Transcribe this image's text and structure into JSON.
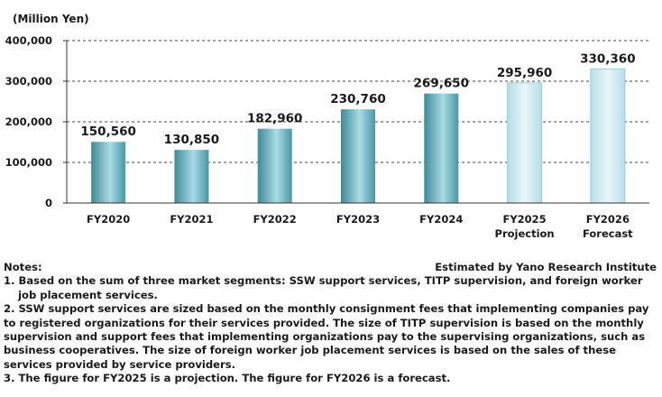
{
  "chart_data": {
    "type": "bar",
    "unit_label": "(Million Yen)",
    "categories": [
      [
        "FY2020"
      ],
      [
        "FY2021"
      ],
      [
        "FY2022"
      ],
      [
        "FY2023"
      ],
      [
        "FY2024"
      ],
      [
        "FY2025",
        "Projection"
      ],
      [
        "FY2026",
        "Forecast"
      ]
    ],
    "values": [
      150560,
      130850,
      182960,
      230760,
      269650,
      295960,
      330360
    ],
    "value_labels": [
      "150,560",
      "130,850",
      "182,960",
      "230,760",
      "269,650",
      "295,960",
      "330,360"
    ],
    "bar_styles": [
      "actual",
      "actual",
      "actual",
      "actual",
      "actual",
      "estimate",
      "estimate"
    ],
    "ylim": [
      0,
      400000
    ],
    "yticks": [
      0,
      100000,
      200000,
      300000,
      400000
    ],
    "ytick_labels": [
      "0",
      "100,000",
      "200,000",
      "300,000",
      "400,000"
    ],
    "grid": "horizontal dashed",
    "colors": {
      "actual_dark": "#3f8a98",
      "actual_light": "#a9dbe6",
      "estimate_light": "#eaf6f9",
      "estimate_mid": "#b6dde7",
      "estimate_border": "#9ccdd9"
    }
  },
  "notes": {
    "heading": "Notes:",
    "source": "Estimated by Yano Research Institute",
    "items": [
      "1. Based on the sum of three market segments: SSW support services, TITP supervision, and foreign worker job placement services.",
      "2. SSW support services are sized based on the monthly consignment fees that implementing companies pay to registered organizations for their services provided. The size of TITP supervision is based on the monthly supervision and support fees that implementing organizations pay to the supervising organizations, such as business cooperatives. The size of foreign worker job placement services is based on the sales of these services provided by service providers.",
      "3. The figure for FY2025 is a projection. The figure for FY2026 is a forecast."
    ]
  }
}
